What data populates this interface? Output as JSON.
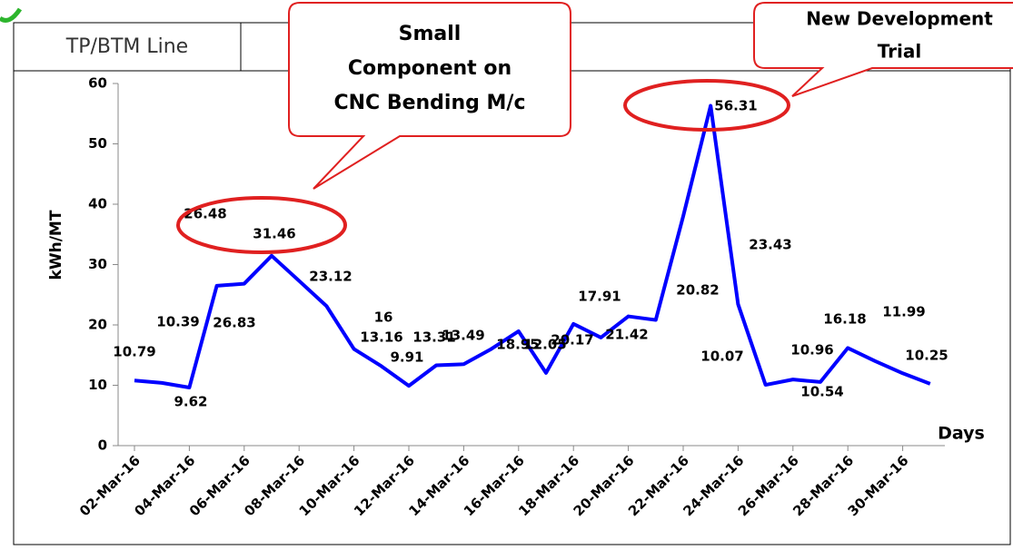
{
  "chart_data": {
    "type": "line",
    "panel_title": "TP/BTM Line",
    "y_label": "kWh/MT",
    "x_label": "Days",
    "callouts": [
      [
        "Small",
        "Component  on",
        "CNC Bending M/c"
      ],
      [
        "New Development",
        "Trial"
      ]
    ],
    "categories": [
      "02-Mar-16",
      null,
      "04-Mar-16",
      null,
      "06-Mar-16",
      null,
      "08-Mar-16",
      null,
      "10-Mar-16",
      null,
      "12-Mar-16",
      null,
      "14-Mar-16",
      null,
      "16-Mar-16",
      null,
      "18-Mar-16",
      null,
      "20-Mar-16",
      null,
      "22-Mar-16",
      null,
      "24-Mar-16",
      null,
      "26-Mar-16",
      null,
      "28-Mar-16",
      null,
      "30-Mar-16",
      null
    ],
    "series": [
      {
        "name": "kWh/MT",
        "color": "#0000ff",
        "values": [
          10.79,
          10.39,
          9.62,
          26.48,
          26.83,
          31.46,
          27.3,
          23.12,
          16,
          13.16,
          9.91,
          13.31,
          13.49,
          16,
          18.95,
          12.05,
          20.17,
          17.91,
          21.42,
          20.82,
          38,
          56.31,
          23.43,
          10.07,
          10.96,
          10.54,
          16.18,
          14,
          11.99,
          10.25
        ],
        "value_labels": [
          "10.79",
          "10.39",
          "9.62",
          "26.48",
          "26.83",
          "31.46",
          null,
          "23.12",
          "16",
          "13.16",
          "9.91",
          "13.31",
          "13.49",
          null,
          "18.95",
          "12.05",
          "20.17",
          "17.91",
          "21.42",
          "20.82",
          null,
          "56.31",
          "23.43",
          "10.07",
          "10.96",
          "10.54",
          "16.18",
          null,
          "11.99",
          "10.25"
        ]
      }
    ],
    "ylim": [
      0,
      60
    ],
    "yticks": [
      0,
      10,
      20,
      30,
      40,
      50,
      60
    ]
  }
}
